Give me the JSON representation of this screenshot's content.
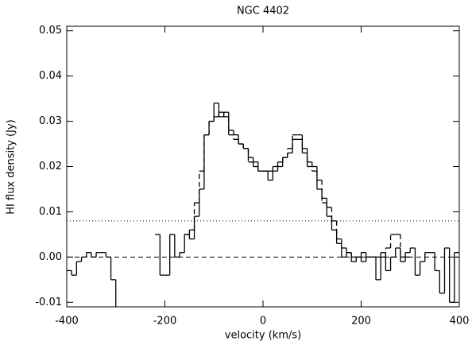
{
  "chart_data": {
    "type": "step",
    "title": "NGC 4402",
    "xlabel": "velocity (km/s)",
    "ylabel": "HI flux density (Jy)",
    "x": [
      -395,
      -385,
      -375,
      -365,
      -355,
      -345,
      -335,
      -325,
      -315,
      -305,
      -295,
      -285,
      -275,
      -265,
      -255,
      -245,
      -235,
      -225,
      -215,
      -205,
      -195,
      -185,
      -175,
      -165,
      -155,
      -145,
      -135,
      -125,
      -115,
      -105,
      -95,
      -85,
      -75,
      -65,
      -55,
      -45,
      -35,
      -25,
      -15,
      -5,
      5,
      15,
      25,
      35,
      45,
      55,
      65,
      75,
      85,
      95,
      105,
      115,
      125,
      135,
      145,
      155,
      165,
      175,
      185,
      195,
      205,
      215,
      225,
      235,
      245,
      255,
      265,
      275,
      285,
      295,
      305,
      315,
      325,
      335,
      345,
      355,
      365,
      375,
      385,
      395
    ],
    "series": [
      {
        "color": "#000000",
        "dash": "solid",
        "values": [
          -0.003,
          -0.004,
          -0.001,
          0.0,
          0.001,
          0.0,
          0.001,
          0.001,
          0.0,
          -0.005,
          -0.015,
          null,
          null,
          null,
          null,
          null,
          null,
          null,
          0.005,
          -0.004,
          -0.004,
          0.005,
          0.0,
          0.001,
          0.005,
          0.004,
          0.009,
          0.015,
          0.027,
          0.03,
          0.034,
          0.031,
          0.032,
          0.027,
          0.027,
          0.025,
          0.024,
          0.022,
          0.021,
          0.019,
          0.019,
          0.017,
          0.019,
          0.02,
          0.022,
          0.023,
          0.026,
          0.026,
          0.023,
          0.02,
          0.02,
          0.015,
          0.013,
          0.009,
          0.006,
          0.003,
          0.0,
          0.001,
          -0.001,
          0.0,
          -0.001,
          0.0,
          0.0,
          -0.005,
          0.001,
          -0.003,
          0.0,
          0.002,
          -0.001,
          0.001,
          0.002,
          -0.004,
          -0.001,
          0.001,
          0.001,
          -0.003,
          -0.008,
          0.002,
          -0.01,
          0.001
        ]
      },
      {
        "color": "#000000",
        "dash": "dashed",
        "values": [
          null,
          null,
          null,
          null,
          null,
          null,
          null,
          null,
          null,
          null,
          null,
          null,
          null,
          null,
          null,
          null,
          null,
          null,
          null,
          null,
          null,
          null,
          null,
          null,
          0.005,
          0.006,
          0.012,
          0.019,
          0.027,
          0.03,
          0.031,
          0.032,
          0.031,
          0.028,
          0.026,
          0.025,
          0.024,
          0.021,
          0.02,
          0.019,
          0.019,
          0.019,
          0.02,
          0.021,
          0.022,
          0.024,
          0.027,
          0.027,
          0.024,
          0.021,
          0.019,
          0.017,
          0.012,
          0.011,
          0.008,
          0.004,
          0.002,
          0.001,
          0.0,
          0.0,
          0.001,
          0.0,
          0.0,
          0.0,
          0.0,
          0.002,
          0.005,
          0.005,
          0.0,
          0.0,
          null,
          null,
          null,
          null,
          null,
          null,
          null,
          null,
          null,
          null
        ]
      }
    ],
    "hlines": [
      {
        "value": 0.008,
        "style": "dotted"
      },
      {
        "value": 0,
        "style": "dashed"
      }
    ],
    "xlim": [
      -400,
      400
    ],
    "ylim": [
      -0.011,
      0.051
    ],
    "xticks": [
      -400,
      -200,
      0,
      200,
      400
    ],
    "yticks": [
      {
        "value": -0.01,
        "label": "-0.01"
      },
      {
        "value": 0,
        "label": "0.00"
      },
      {
        "value": 0.01,
        "label": "0.01"
      },
      {
        "value": 0.02,
        "label": "0.02"
      },
      {
        "value": 0.03,
        "label": "0.03"
      },
      {
        "value": 0.04,
        "label": "0.04"
      },
      {
        "value": 0.05,
        "label": "0.05"
      }
    ]
  }
}
